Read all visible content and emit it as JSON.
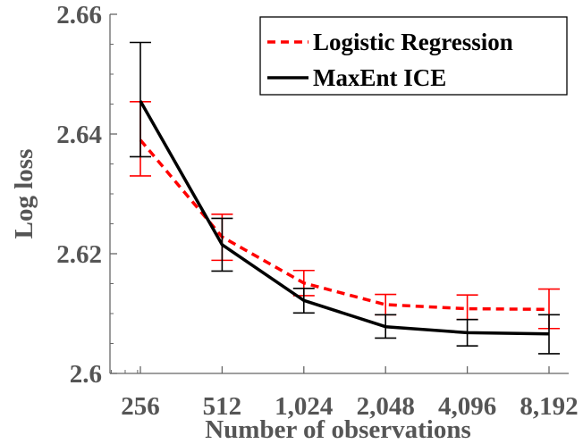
{
  "chart_data": {
    "type": "line",
    "xlabel": "Number of observations",
    "ylabel": "Log loss",
    "x_tick_labels": [
      "256",
      "512",
      "1,024",
      "2,048",
      "4,096",
      "8,192"
    ],
    "x_scale": "log2",
    "x": [
      256,
      512,
      1024,
      2048,
      4096,
      8192
    ],
    "y_tick_labels": [
      "2.6",
      "2.62",
      "2.64",
      "2.66"
    ],
    "y_ticks": [
      2.6,
      2.62,
      2.64,
      2.66
    ],
    "ylim": [
      2.6,
      2.66
    ],
    "legend_position": "top-right",
    "grid": false,
    "series": [
      {
        "name": "Logistic Regression",
        "color": "#ff0000",
        "line_style": "dashed",
        "values": [
          2.639,
          2.6228,
          2.6151,
          2.6115,
          2.6108,
          2.6107
        ],
        "error_low": [
          2.633,
          2.6189,
          2.613,
          2.6098,
          2.609,
          2.6075
        ],
        "error_high": [
          2.6454,
          2.6266,
          2.6172,
          2.6132,
          2.6131,
          2.6141
        ]
      },
      {
        "name": "MaxEnt ICE",
        "color": "#000000",
        "line_style": "solid",
        "values": [
          2.6455,
          2.6215,
          2.6122,
          2.6078,
          2.6068,
          2.6066
        ],
        "error_low": [
          2.6362,
          2.6171,
          2.6101,
          2.6059,
          2.6046,
          2.6033
        ],
        "error_high": [
          2.6553,
          2.6259,
          2.6142,
          2.6098,
          2.609,
          2.6098
        ]
      }
    ]
  }
}
